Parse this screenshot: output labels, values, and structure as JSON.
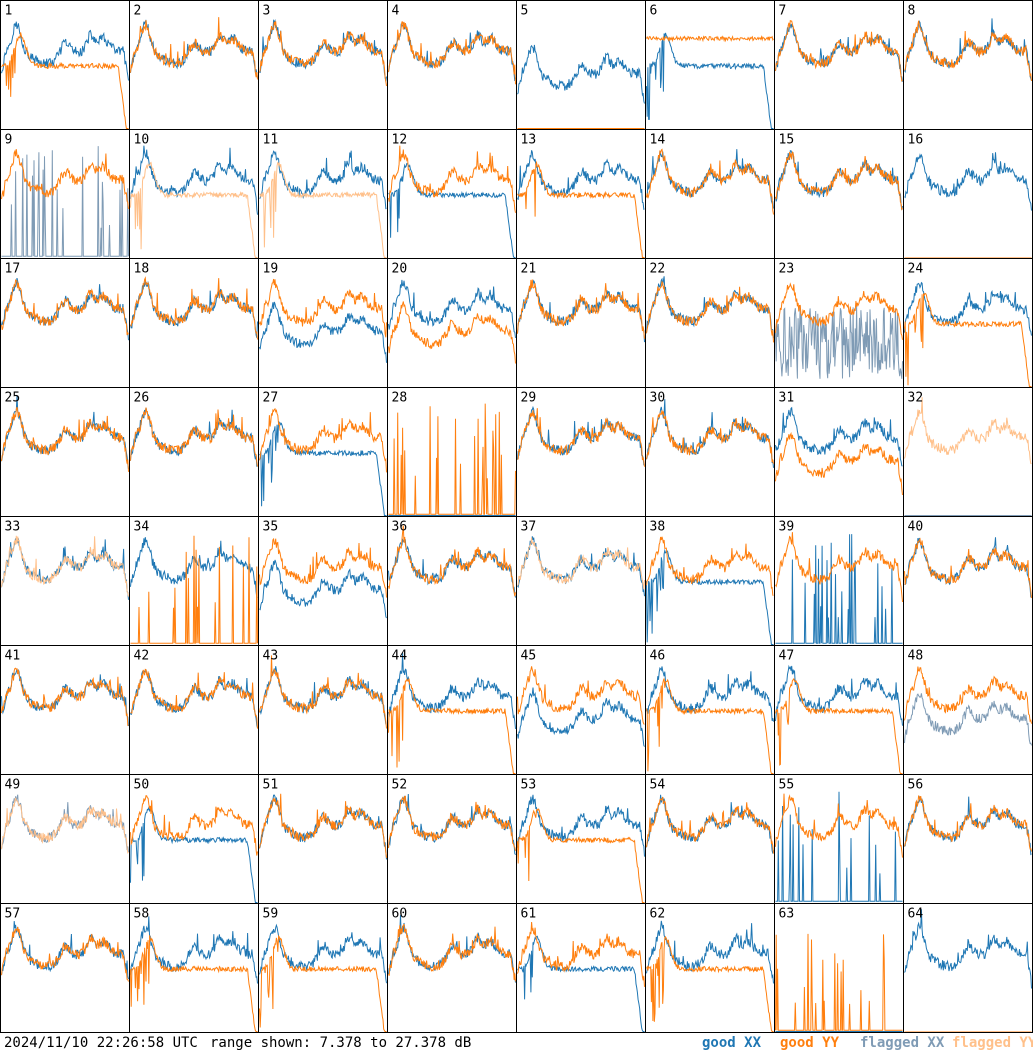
{
  "footer": {
    "timestamp": "2024/11/10 22:26:58 UTC",
    "range_text": "range shown: 7.378 to 27.378 dB"
  },
  "legend": [
    {
      "label": "good XX",
      "color": "#1f77b4"
    },
    {
      "label": "good YY",
      "color": "#ff7f0e"
    },
    {
      "label": "flagged XX",
      "color": "#7f9bb5"
    },
    {
      "label": "flagged YY",
      "color": "#ffc08a"
    }
  ],
  "chart_data": {
    "type": "line",
    "grid": {
      "rows": 8,
      "cols": 8
    },
    "ylim": [
      7.378,
      27.378
    ],
    "y_unit": "dB",
    "panels": [
      {
        "id": "1",
        "xx": "good",
        "yy": "good",
        "xx_shape": "flat",
        "yy_shape": "droop"
      },
      {
        "id": "2",
        "xx": "good",
        "yy": "good",
        "xx_shape": "flat",
        "yy_shape": "flat"
      },
      {
        "id": "3",
        "xx": "good",
        "yy": "good",
        "xx_shape": "flat",
        "yy_shape": "flat"
      },
      {
        "id": "4",
        "xx": "good",
        "yy": "good",
        "xx_shape": "flat",
        "yy_shape": "flat"
      },
      {
        "id": "5",
        "xx": "good",
        "yy": "good",
        "xx_shape": "low",
        "yy_shape": "dead"
      },
      {
        "id": "6",
        "xx": "good",
        "yy": "good",
        "xx_shape": "droop",
        "yy_shape": "high"
      },
      {
        "id": "7",
        "xx": "good",
        "yy": "good",
        "xx_shape": "flat",
        "yy_shape": "flat"
      },
      {
        "id": "8",
        "xx": "good",
        "yy": "good",
        "xx_shape": "flat",
        "yy_shape": "flat"
      },
      {
        "id": "9",
        "xx": "flagged",
        "yy": "good",
        "xx_shape": "spikes",
        "yy_shape": "flat"
      },
      {
        "id": "10",
        "xx": "good",
        "yy": "flagged",
        "xx_shape": "flat",
        "yy_shape": "droop"
      },
      {
        "id": "11",
        "xx": "good",
        "yy": "flagged",
        "xx_shape": "flat",
        "yy_shape": "droop"
      },
      {
        "id": "12",
        "xx": "good",
        "yy": "good",
        "xx_shape": "droop",
        "yy_shape": "flat"
      },
      {
        "id": "13",
        "xx": "good",
        "yy": "good",
        "xx_shape": "flat",
        "yy_shape": "droop"
      },
      {
        "id": "14",
        "xx": "good",
        "yy": "good",
        "xx_shape": "flat",
        "yy_shape": "flat"
      },
      {
        "id": "15",
        "xx": "good",
        "yy": "good",
        "xx_shape": "flat",
        "yy_shape": "flat"
      },
      {
        "id": "16",
        "xx": "good",
        "yy": "flagged",
        "xx_shape": "flat",
        "yy_shape": "dead"
      },
      {
        "id": "17",
        "xx": "good",
        "yy": "good",
        "xx_shape": "flat",
        "yy_shape": "flat"
      },
      {
        "id": "18",
        "xx": "good",
        "yy": "good",
        "xx_shape": "flat",
        "yy_shape": "flat"
      },
      {
        "id": "19",
        "xx": "good",
        "yy": "good",
        "xx_shape": "low",
        "yy_shape": "flat"
      },
      {
        "id": "20",
        "xx": "good",
        "yy": "good",
        "xx_shape": "flat",
        "yy_shape": "low"
      },
      {
        "id": "21",
        "xx": "good",
        "yy": "good",
        "xx_shape": "flat",
        "yy_shape": "flat"
      },
      {
        "id": "22",
        "xx": "good",
        "yy": "good",
        "xx_shape": "flat",
        "yy_shape": "flat"
      },
      {
        "id": "23",
        "xx": "flagged",
        "yy": "good",
        "xx_shape": "noise",
        "yy_shape": "flat"
      },
      {
        "id": "24",
        "xx": "good",
        "yy": "good",
        "xx_shape": "flat",
        "yy_shape": "droop"
      },
      {
        "id": "25",
        "xx": "good",
        "yy": "good",
        "xx_shape": "flat",
        "yy_shape": "flat"
      },
      {
        "id": "26",
        "xx": "good",
        "yy": "good",
        "xx_shape": "flat",
        "yy_shape": "flat"
      },
      {
        "id": "27",
        "xx": "good",
        "yy": "good",
        "xx_shape": "droop",
        "yy_shape": "flat"
      },
      {
        "id": "28",
        "xx": "good",
        "yy": "good",
        "xx_shape": "dead",
        "yy_shape": "spikes"
      },
      {
        "id": "29",
        "xx": "good",
        "yy": "good",
        "xx_shape": "flat",
        "yy_shape": "flat"
      },
      {
        "id": "30",
        "xx": "good",
        "yy": "good",
        "xx_shape": "flat",
        "yy_shape": "flat"
      },
      {
        "id": "31",
        "xx": "good",
        "yy": "good",
        "xx_shape": "flat",
        "yy_shape": "low"
      },
      {
        "id": "32",
        "xx": "flagged",
        "yy": "flagged",
        "xx_shape": "dead",
        "yy_shape": "flat"
      },
      {
        "id": "33",
        "xx": "good",
        "yy": "flagged",
        "xx_shape": "flat",
        "yy_shape": "flat"
      },
      {
        "id": "34",
        "xx": "good",
        "yy": "good",
        "xx_shape": "flat",
        "yy_shape": "spikes"
      },
      {
        "id": "35",
        "xx": "good",
        "yy": "good",
        "xx_shape": "low",
        "yy_shape": "flat"
      },
      {
        "id": "36",
        "xx": "good",
        "yy": "good",
        "xx_shape": "flat",
        "yy_shape": "flat"
      },
      {
        "id": "37",
        "xx": "good",
        "yy": "flagged",
        "xx_shape": "flat",
        "yy_shape": "flat"
      },
      {
        "id": "38",
        "xx": "good",
        "yy": "good",
        "xx_shape": "droop",
        "yy_shape": "flat"
      },
      {
        "id": "39",
        "xx": "good",
        "yy": "good",
        "xx_shape": "spikes",
        "yy_shape": "flat"
      },
      {
        "id": "40",
        "xx": "good",
        "yy": "good",
        "xx_shape": "flat",
        "yy_shape": "flat"
      },
      {
        "id": "41",
        "xx": "good",
        "yy": "good",
        "xx_shape": "flat",
        "yy_shape": "flat"
      },
      {
        "id": "42",
        "xx": "good",
        "yy": "good",
        "xx_shape": "flat",
        "yy_shape": "flat"
      },
      {
        "id": "43",
        "xx": "good",
        "yy": "good",
        "xx_shape": "flat",
        "yy_shape": "flat"
      },
      {
        "id": "44",
        "xx": "good",
        "yy": "good",
        "xx_shape": "flat",
        "yy_shape": "droop"
      },
      {
        "id": "45",
        "xx": "good",
        "yy": "good",
        "xx_shape": "low",
        "yy_shape": "flat"
      },
      {
        "id": "46",
        "xx": "good",
        "yy": "good",
        "xx_shape": "flat",
        "yy_shape": "droop"
      },
      {
        "id": "47",
        "xx": "good",
        "yy": "good",
        "xx_shape": "flat",
        "yy_shape": "droop"
      },
      {
        "id": "48",
        "xx": "flagged",
        "yy": "good",
        "xx_shape": "low",
        "yy_shape": "flat"
      },
      {
        "id": "49",
        "xx": "flagged",
        "yy": "flagged",
        "xx_shape": "flat",
        "yy_shape": "flat"
      },
      {
        "id": "50",
        "xx": "good",
        "yy": "good",
        "xx_shape": "droop",
        "yy_shape": "flat"
      },
      {
        "id": "51",
        "xx": "good",
        "yy": "good",
        "xx_shape": "flat",
        "yy_shape": "flat"
      },
      {
        "id": "52",
        "xx": "good",
        "yy": "good",
        "xx_shape": "flat",
        "yy_shape": "flat"
      },
      {
        "id": "53",
        "xx": "good",
        "yy": "good",
        "xx_shape": "flat",
        "yy_shape": "droop"
      },
      {
        "id": "54",
        "xx": "good",
        "yy": "good",
        "xx_shape": "flat",
        "yy_shape": "flat"
      },
      {
        "id": "55",
        "xx": "good",
        "yy": "good",
        "xx_shape": "spikes",
        "yy_shape": "flat"
      },
      {
        "id": "56",
        "xx": "good",
        "yy": "good",
        "xx_shape": "flat",
        "yy_shape": "flat"
      },
      {
        "id": "57",
        "xx": "good",
        "yy": "good",
        "xx_shape": "flat",
        "yy_shape": "flat"
      },
      {
        "id": "58",
        "xx": "good",
        "yy": "good",
        "xx_shape": "flat",
        "yy_shape": "droop"
      },
      {
        "id": "59",
        "xx": "good",
        "yy": "good",
        "xx_shape": "flat",
        "yy_shape": "droop"
      },
      {
        "id": "60",
        "xx": "good",
        "yy": "good",
        "xx_shape": "flat",
        "yy_shape": "flat"
      },
      {
        "id": "61",
        "xx": "good",
        "yy": "good",
        "xx_shape": "droop",
        "yy_shape": "flat"
      },
      {
        "id": "62",
        "xx": "good",
        "yy": "good",
        "xx_shape": "flat",
        "yy_shape": "droop"
      },
      {
        "id": "63",
        "xx": "good",
        "yy": "good",
        "xx_shape": "dead",
        "yy_shape": "spikes"
      },
      {
        "id": "64",
        "xx": "good",
        "yy": "flagged",
        "xx_shape": "flat",
        "yy_shape": "dead"
      }
    ]
  }
}
